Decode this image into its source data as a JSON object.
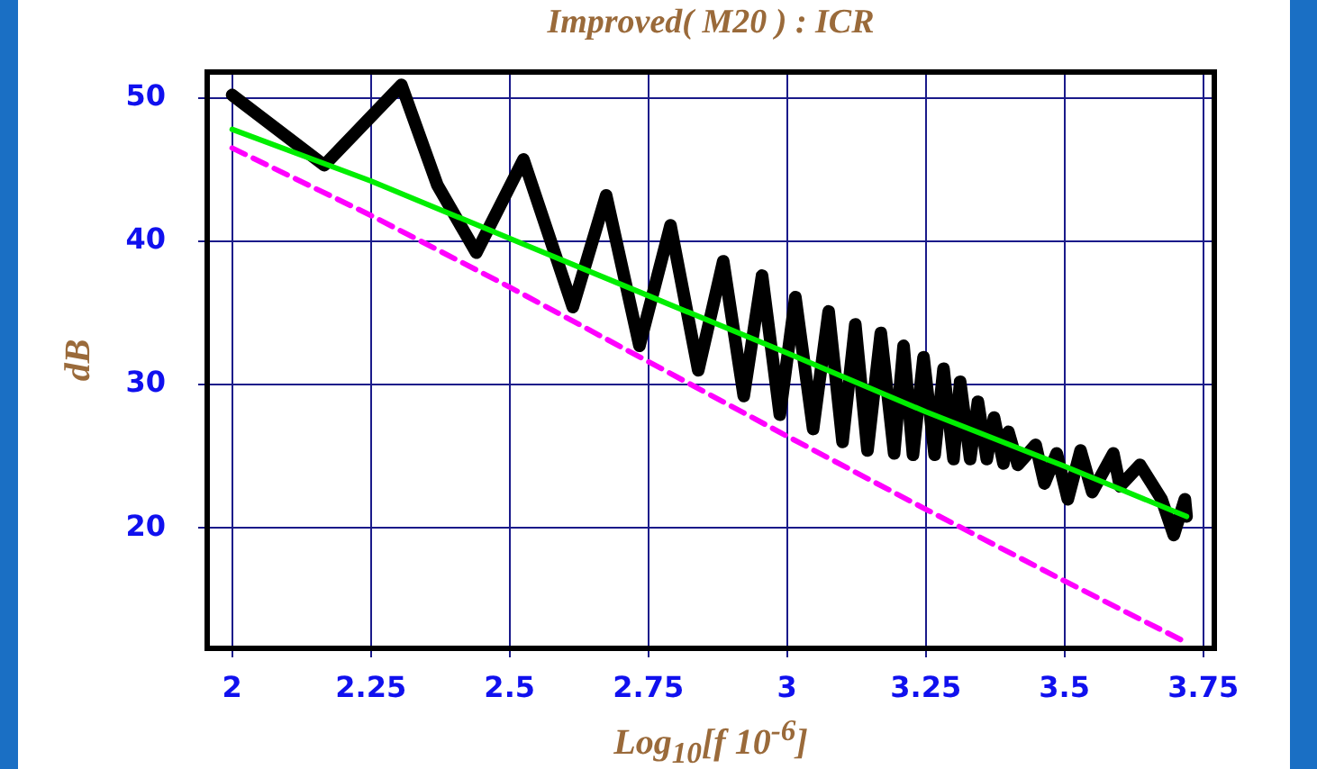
{
  "chart_data": {
    "type": "line",
    "title": "Improved( M20 ) : ICR",
    "xlabel": "Log$_{10}$[f 10$^{-6}$]",
    "ylabel": "dB",
    "xlim": [
      1.955,
      3.77
    ],
    "ylim": [
      11.6,
      51.8
    ],
    "xticks": [
      2,
      2.25,
      2.5,
      2.75,
      3,
      3.25,
      3.5,
      3.75
    ],
    "yticks": [
      20,
      30,
      40,
      50
    ],
    "grid": true,
    "legend": false,
    "marker": "none",
    "series": [
      {
        "color": "#000000",
        "line_style": "solid",
        "x": [
          2,
          2.166,
          2.305,
          2.37,
          2.44,
          2.525,
          2.614,
          2.674,
          2.734,
          2.79,
          2.84,
          2.885,
          2.922,
          2.955,
          2.987,
          3.015,
          3.047,
          3.075,
          3.1,
          3.123,
          3.145,
          3.169,
          3.193,
          3.21,
          3.227,
          3.246,
          3.266,
          3.282,
          3.3,
          3.312,
          3.33,
          3.344,
          3.36,
          3.373,
          3.39,
          3.399,
          3.416,
          3.448,
          3.464,
          3.486,
          3.506,
          3.529,
          3.55,
          3.588,
          3.6,
          3.636,
          3.675,
          3.697,
          3.717,
          3.72
        ],
        "values": [
          50.2,
          45.3,
          50.9,
          43.9,
          39.2,
          45.7,
          35.4,
          43.2,
          32.7,
          41.1,
          31,
          38.6,
          29.2,
          37.6,
          27.9,
          36.1,
          26.9,
          35.1,
          26,
          34.2,
          25.4,
          33.6,
          25.2,
          32.7,
          25.1,
          31.9,
          25.1,
          31.1,
          24.8,
          30.2,
          24.8,
          28.8,
          24.8,
          27.7,
          24.5,
          26.7,
          24.4,
          25.8,
          23.1,
          25.2,
          22,
          25.4,
          22.5,
          25.2,
          22.9,
          24.4,
          22,
          19.5,
          22,
          20.8
        ]
      },
      {
        "color": "#00ee00",
        "line_style": "solid",
        "x": [
          2,
          2.25,
          2.5,
          2.75,
          3,
          3.25,
          3.5,
          3.72
        ],
        "values": [
          47.8,
          44.2,
          40.2,
          36.2,
          32.2,
          28.1,
          24.3,
          20.8
        ]
      },
      {
        "color": "#ff00ff",
        "line_style": "dashed",
        "x": [
          2,
          2.25,
          2.5,
          2.75,
          3,
          3.25,
          3.5,
          3.72
        ],
        "values": [
          46.5,
          41.8,
          36.8,
          31.6,
          26.4,
          21.3,
          16.3,
          12
        ]
      }
    ]
  }
}
